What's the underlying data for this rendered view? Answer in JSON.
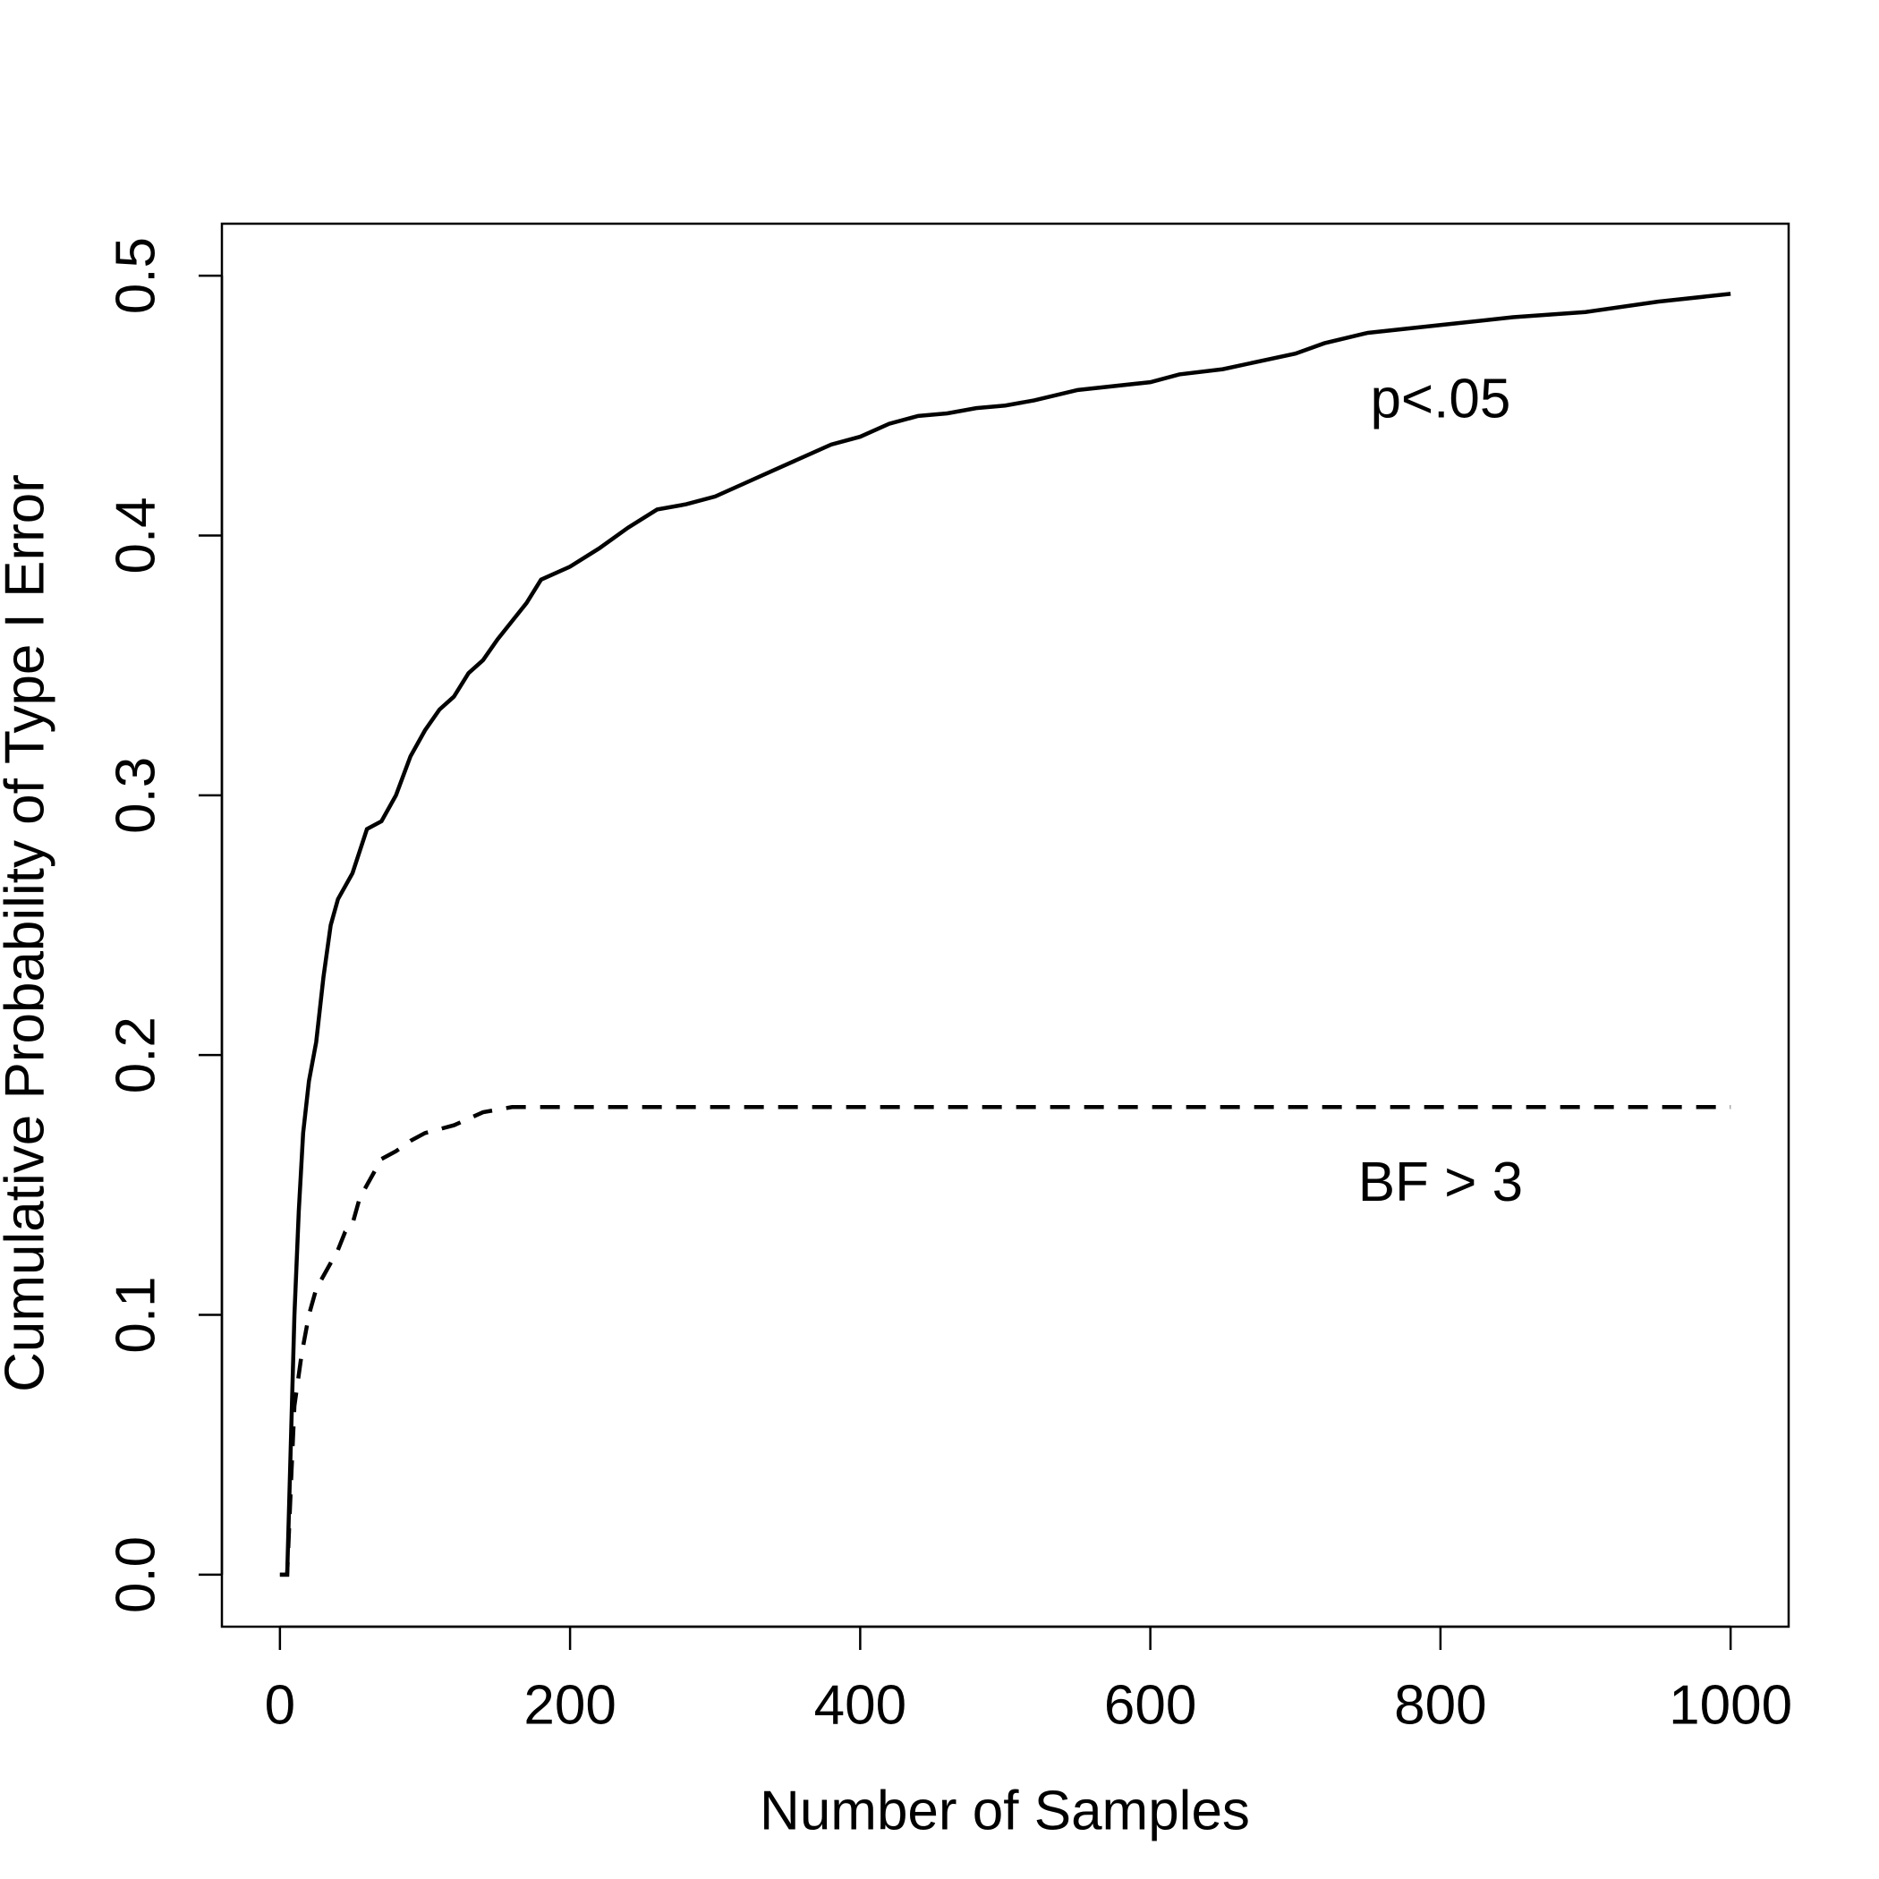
{
  "chart_data": {
    "type": "line",
    "x_label": "Number of Samples",
    "y_label": "Cumulative Probability of Type I Error",
    "xlim": [
      -40,
      1040
    ],
    "ylim": [
      -0.02,
      0.52
    ],
    "xticks": [
      0,
      200,
      400,
      600,
      800,
      1000
    ],
    "yticks": [
      {
        "value": 0,
        "label": "0.0"
      },
      0.1,
      0.2,
      0.3,
      0.4,
      0.5
    ],
    "grid": false,
    "series": [
      {
        "name": "p<.05",
        "color": "#000000",
        "dashed": false,
        "x": [
          0,
          5,
          8,
          10,
          13,
          16,
          20,
          25,
          30,
          35,
          40,
          50,
          60,
          70,
          80,
          90,
          100,
          110,
          120,
          130,
          140,
          150,
          160,
          170,
          180,
          200,
          220,
          240,
          260,
          280,
          300,
          320,
          340,
          360,
          380,
          400,
          420,
          440,
          460,
          480,
          500,
          520,
          550,
          600,
          620,
          650,
          700,
          720,
          750,
          800,
          850,
          900,
          950,
          1000
        ],
        "values": [
          0,
          0,
          0.06,
          0.1,
          0.14,
          0.17,
          0.19,
          0.205,
          0.23,
          0.25,
          0.26,
          0.27,
          0.287,
          0.29,
          0.3,
          0.315,
          0.325,
          0.333,
          0.338,
          0.347,
          0.352,
          0.36,
          0.367,
          0.374,
          0.383,
          0.388,
          0.395,
          0.403,
          0.41,
          0.412,
          0.415,
          0.42,
          0.425,
          0.43,
          0.435,
          0.438,
          0.443,
          0.446,
          0.447,
          0.449,
          0.45,
          0.452,
          0.456,
          0.459,
          0.462,
          0.464,
          0.47,
          0.474,
          0.478,
          0.481,
          0.484,
          0.486,
          0.49,
          0.493
        ]
      },
      {
        "name": "BF > 3",
        "color": "#000000",
        "dashed": true,
        "x": [
          0,
          5,
          8,
          10,
          15,
          20,
          25,
          30,
          35,
          40,
          45,
          50,
          55,
          60,
          70,
          80,
          90,
          100,
          120,
          140,
          160,
          200,
          1000
        ],
        "values": [
          0,
          0,
          0.04,
          0.065,
          0.085,
          0.1,
          0.11,
          0.115,
          0.12,
          0.125,
          0.132,
          0.135,
          0.145,
          0.15,
          0.16,
          0.163,
          0.167,
          0.17,
          0.173,
          0.178,
          0.18,
          0.18,
          0.18
        ]
      }
    ]
  }
}
